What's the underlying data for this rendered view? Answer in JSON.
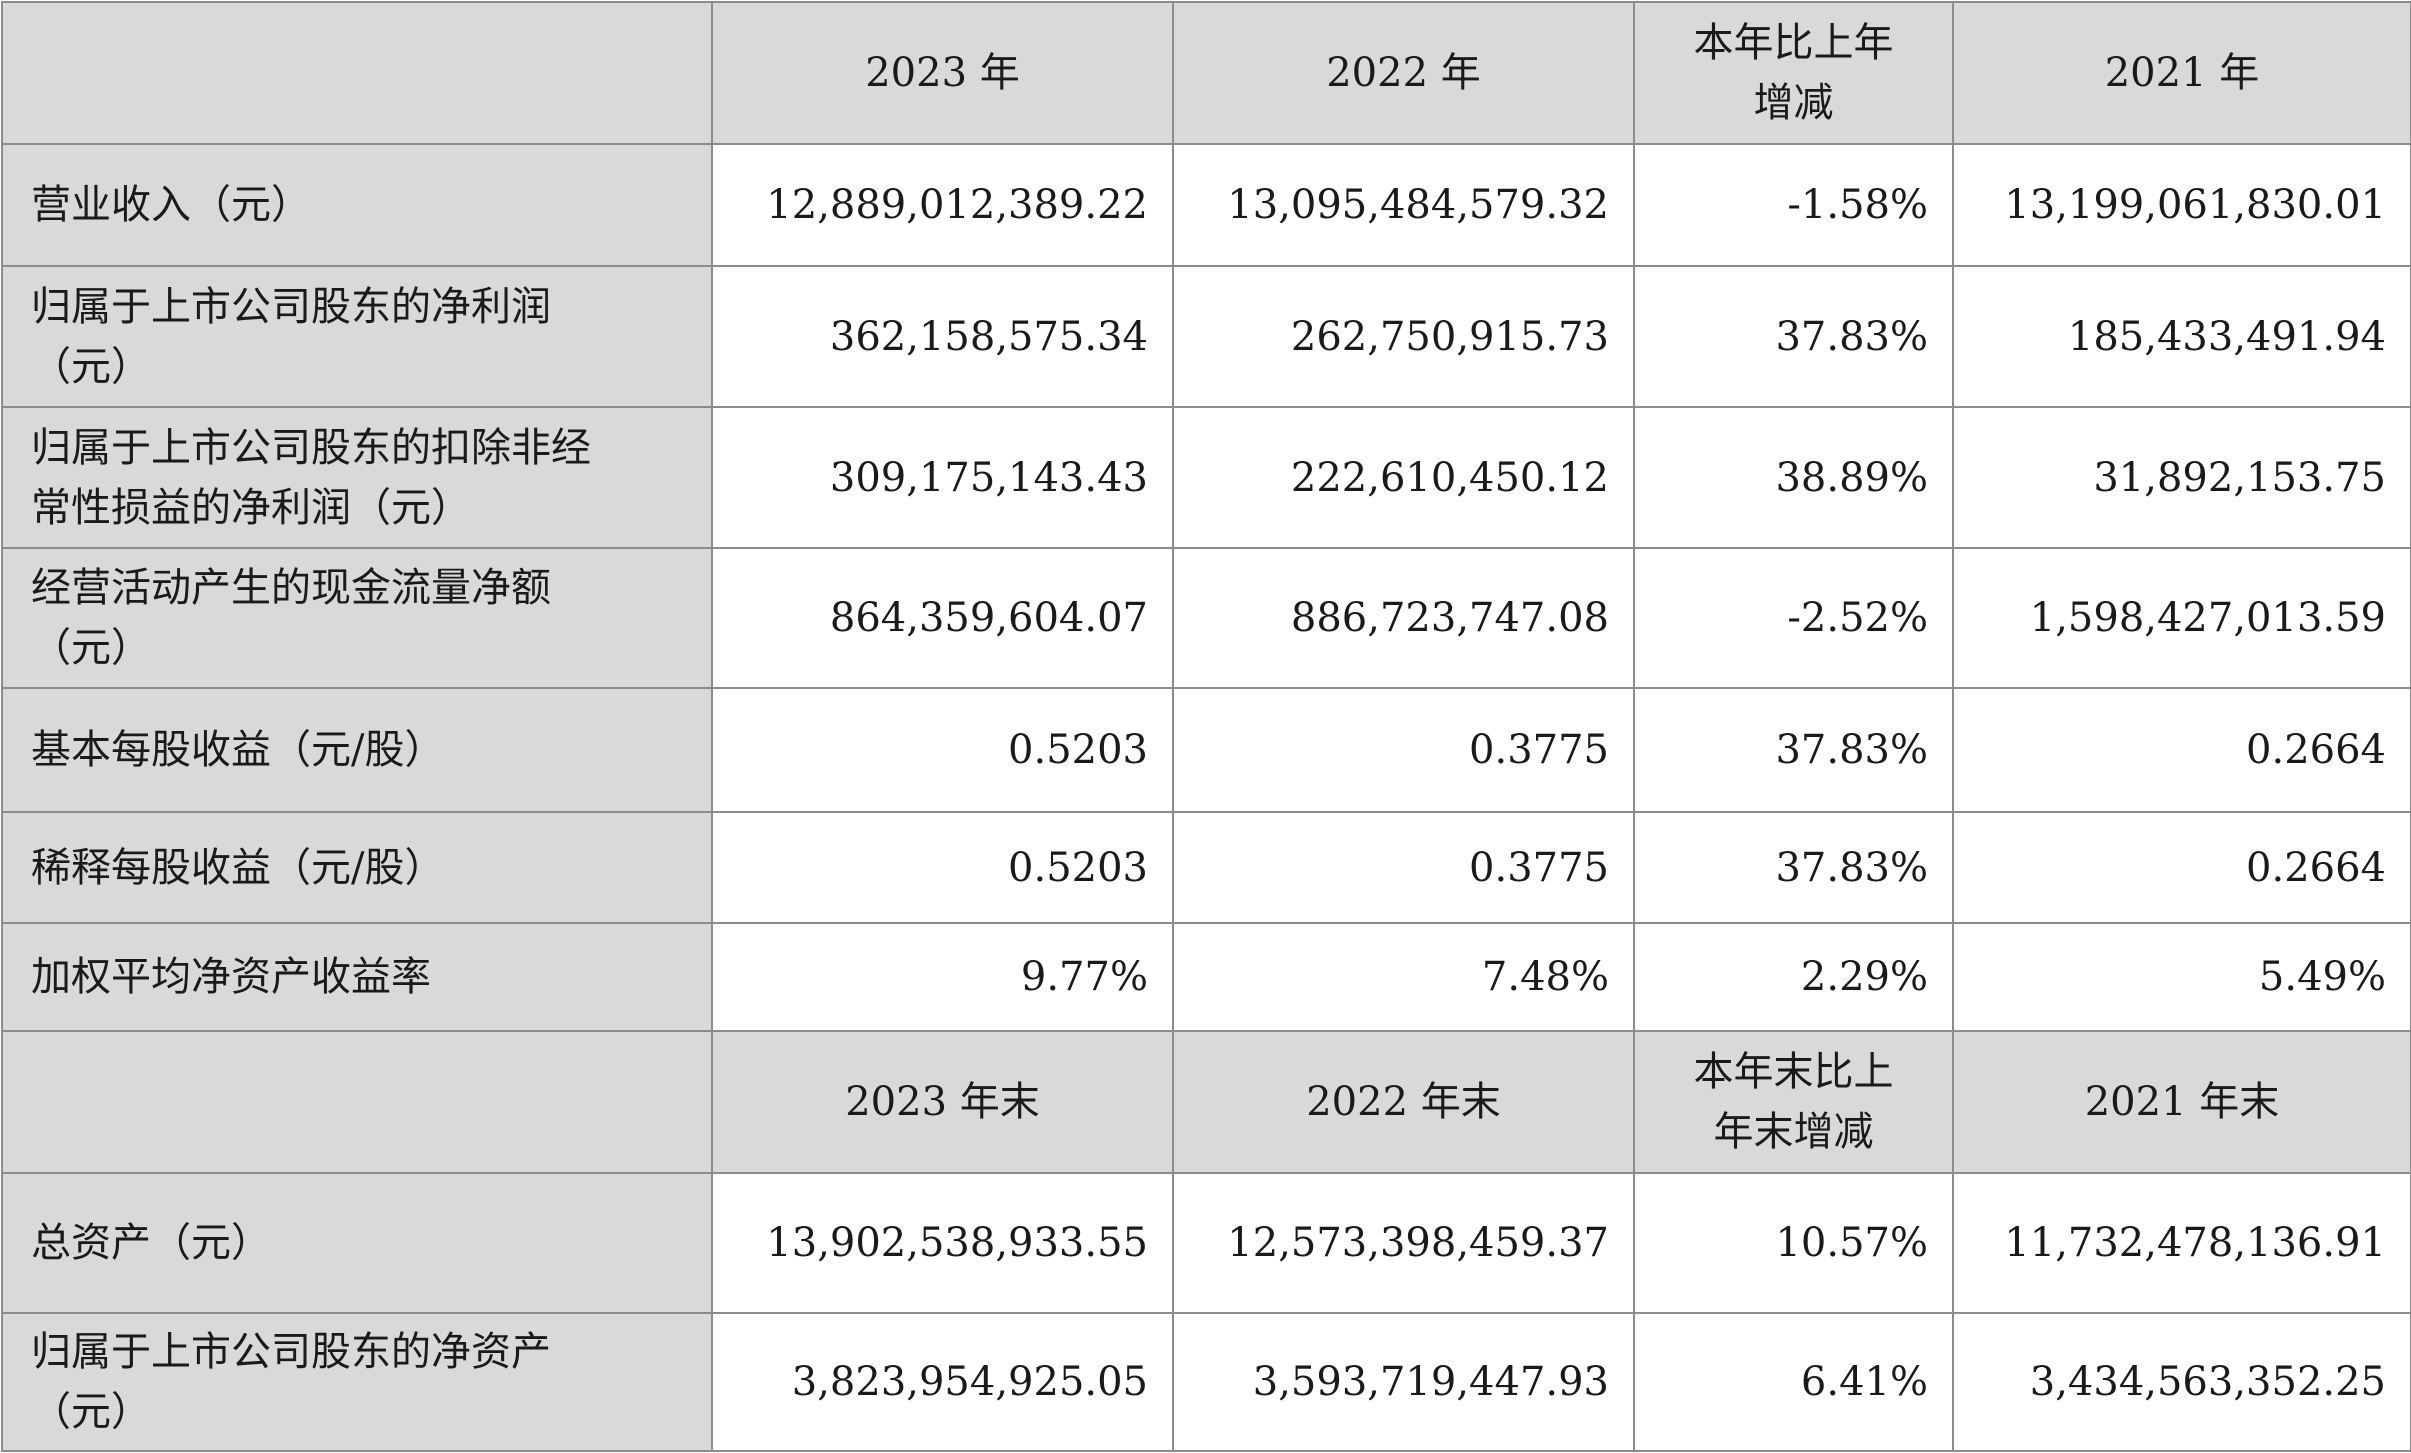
{
  "header1": {
    "c1": "2023 年",
    "c2": "2022 年",
    "c3_line1": "本年比上年",
    "c3_line2": "增减",
    "c4": "2021 年"
  },
  "rows1": [
    {
      "label_line1": "营业收入（元）",
      "label_line2": "",
      "v2023": "12,889,012,389.22",
      "v2022": "13,095,484,579.32",
      "change": "-1.58%",
      "v2021": "13,199,061,830.01"
    },
    {
      "label_line1": "归属于上市公司股东的净利润",
      "label_line2": "（元）",
      "v2023": "362,158,575.34",
      "v2022": "262,750,915.73",
      "change": "37.83%",
      "v2021": "185,433,491.94"
    },
    {
      "label_line1": "归属于上市公司股东的扣除非经",
      "label_line2": "常性损益的净利润（元）",
      "v2023": "309,175,143.43",
      "v2022": "222,610,450.12",
      "change": "38.89%",
      "v2021": "31,892,153.75"
    },
    {
      "label_line1": "经营活动产生的现金流量净额",
      "label_line2": "（元）",
      "v2023": "864,359,604.07",
      "v2022": "886,723,747.08",
      "change": "-2.52%",
      "v2021": "1,598,427,013.59"
    },
    {
      "label_line1": "基本每股收益（元/股）",
      "label_line2": "",
      "v2023": "0.5203",
      "v2022": "0.3775",
      "change": "37.83%",
      "v2021": "0.2664"
    },
    {
      "label_line1": "稀释每股收益（元/股）",
      "label_line2": "",
      "v2023": "0.5203",
      "v2022": "0.3775",
      "change": "37.83%",
      "v2021": "0.2664"
    },
    {
      "label_line1": "加权平均净资产收益率",
      "label_line2": "",
      "v2023": "9.77%",
      "v2022": "7.48%",
      "change": "2.29%",
      "v2021": "5.49%"
    }
  ],
  "header2": {
    "c1": "2023 年末",
    "c2": "2022 年末",
    "c3_line1": "本年末比上",
    "c3_line2": "年末增减",
    "c4": "2021 年末"
  },
  "rows2": [
    {
      "label_line1": "总资产（元）",
      "label_line2": "",
      "v2023": "13,902,538,933.55",
      "v2022": "12,573,398,459.37",
      "change": "10.57%",
      "v2021": "11,732,478,136.91"
    },
    {
      "label_line1": "归属于上市公司股东的净资产",
      "label_line2": "（元）",
      "v2023": "3,823,954,925.05",
      "v2022": "3,593,719,447.93",
      "change": "6.41%",
      "v2021": "3,434,563,352.25"
    }
  ]
}
